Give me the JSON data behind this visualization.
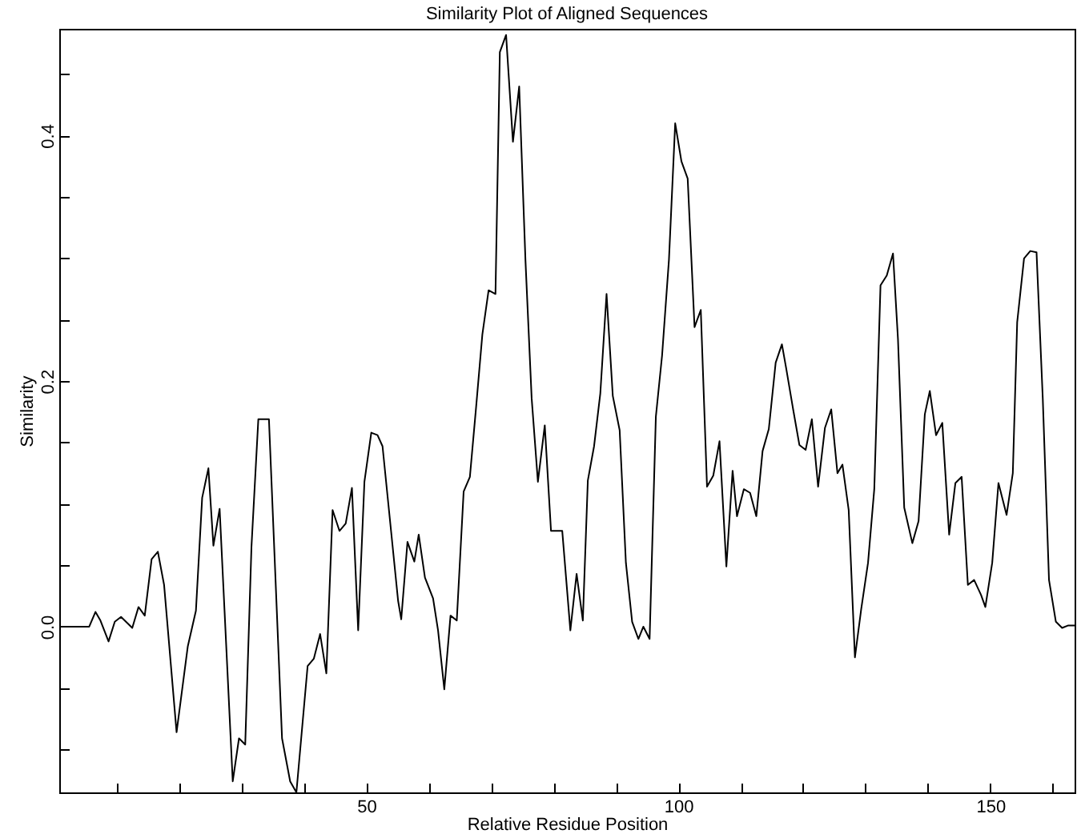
{
  "chart_data": {
    "type": "line",
    "title": "Similarity Plot of Aligned Sequences",
    "xlabel": "Relative Residue Position",
    "ylabel": "Similarity",
    "xlim": [
      0.8,
      163.5
    ],
    "ylim": [
      -0.135,
      0.487
    ],
    "xticks": [
      {
        "value": 10,
        "label": null
      },
      {
        "value": 20,
        "label": null
      },
      {
        "value": 30,
        "label": null
      },
      {
        "value": 40,
        "label": null
      },
      50,
      {
        "value": 60,
        "label": null
      },
      {
        "value": 70,
        "label": null
      },
      {
        "value": 80,
        "label": null
      },
      {
        "value": 90,
        "label": null
      },
      100,
      {
        "value": 110,
        "label": null
      },
      {
        "value": 120,
        "label": null
      },
      {
        "value": 130,
        "label": null
      },
      {
        "value": 140,
        "label": null
      },
      150,
      {
        "value": 160,
        "label": null
      }
    ],
    "yticks": [
      {
        "value": -0.1,
        "label": null
      },
      {
        "value": -0.05,
        "label": null
      },
      {
        "value": 0,
        "label": "0.0"
      },
      {
        "value": 0.05,
        "label": null
      },
      {
        "value": 0.1,
        "label": null
      },
      {
        "value": 0.15,
        "label": null
      },
      0.2,
      {
        "value": 0.25,
        "label": null
      },
      {
        "value": 0.3,
        "label": null
      },
      {
        "value": 0.35,
        "label": null
      },
      0.4,
      {
        "value": 0.45,
        "label": null
      }
    ],
    "grid": false,
    "marker": "none",
    "line_style": "solid",
    "x": [
      0.8,
      5.6,
      6.6,
      7.4,
      8.7,
      9.7,
      10.7,
      12.5,
      13.5,
      14.5,
      15.6,
      16.6,
      17.6,
      19.6,
      21.4,
      22.7,
      23.7,
      24.7,
      25.5,
      26.5,
      28.6,
      29.6,
      30.6,
      31.6,
      32.7,
      34.4,
      36.5,
      37.8,
      38.8,
      40.6,
      41.6,
      42.6,
      43.6,
      44.6,
      45.7,
      46.7,
      47.7,
      48.7,
      49.7,
      50.8,
      51.8,
      52.6,
      55.1,
      55.6,
      56.6,
      57.7,
      58.4,
      59.4,
      60.7,
      61.5,
      62.5,
      63.5,
      64.5,
      65.6,
      66.6,
      67.6,
      68.6,
      69.6,
      70.7,
      71.4,
      72.4,
      73.5,
      74.5,
      75.5,
      76.5,
      77.5,
      78.6,
      79.6,
      81.4,
      82.7,
      83.7,
      84.7,
      85.5,
      86.5,
      87.5,
      88.5,
      89.5,
      90.6,
      91.6,
      92.6,
      93.6,
      94.4,
      95.4,
      96.4,
      97.4,
      98.5,
      99.5,
      100.5,
      101.5,
      102.6,
      103.6,
      104.6,
      105.6,
      106.6,
      107.7,
      108.7,
      109.4,
      110.5,
      111.5,
      112.5,
      113.5,
      114.5,
      115.6,
      116.6,
      117.3,
      118.4,
      119.4,
      120.4,
      121.4,
      122.4,
      123.5,
      124.5,
      125.5,
      126.3,
      127.3,
      128.3,
      129.3,
      130.4,
      131.4,
      132.4,
      133.4,
      134.4,
      135.2,
      136.2,
      137.5,
      138.5,
      139.5,
      140.3,
      141.3,
      142.3,
      143.4,
      144.4,
      145.4,
      146.4,
      147.4,
      148.5,
      149.2,
      150.3,
      151.3,
      152.6,
      153.6,
      154.3,
      155.4,
      156.4,
      157.4,
      158.4,
      159.4,
      160.5,
      161.5,
      162.5,
      163.5
    ],
    "series": [
      {
        "color": "#000000",
        "values": [
          0.0,
          0.0,
          0.012,
          0.005,
          -0.012,
          0.004,
          0.008,
          -0.001,
          0.016,
          0.009,
          0.055,
          0.061,
          0.034,
          -0.086,
          -0.016,
          0.013,
          0.105,
          0.129,
          0.066,
          0.096,
          -0.126,
          -0.091,
          -0.096,
          0.065,
          0.169,
          0.169,
          -0.091,
          -0.126,
          -0.135,
          -0.032,
          -0.026,
          -0.006,
          -0.038,
          0.095,
          0.078,
          0.084,
          0.113,
          -0.003,
          0.118,
          0.158,
          0.156,
          0.147,
          0.021,
          0.006,
          0.069,
          0.053,
          0.075,
          0.04,
          0.023,
          -0.003,
          -0.051,
          0.009,
          0.005,
          0.11,
          0.122,
          0.179,
          0.238,
          0.274,
          0.271,
          0.468,
          0.482,
          0.395,
          0.44,
          0.299,
          0.186,
          0.118,
          0.164,
          0.078,
          0.078,
          -0.003,
          0.043,
          0.005,
          0.119,
          0.147,
          0.19,
          0.271,
          0.188,
          0.16,
          0.052,
          0.004,
          -0.01,
          0.0,
          -0.01,
          0.171,
          0.221,
          0.299,
          0.41,
          0.379,
          0.365,
          0.244,
          0.258,
          0.114,
          0.123,
          0.151,
          0.049,
          0.127,
          0.09,
          0.112,
          0.109,
          0.09,
          0.143,
          0.161,
          0.215,
          0.23,
          0.21,
          0.177,
          0.148,
          0.144,
          0.169,
          0.114,
          0.162,
          0.177,
          0.125,
          0.132,
          0.095,
          -0.025,
          0.014,
          0.052,
          0.112,
          0.278,
          0.286,
          0.304,
          0.234,
          0.097,
          0.068,
          0.086,
          0.173,
          0.192,
          0.156,
          0.166,
          0.075,
          0.117,
          0.122,
          0.034,
          0.038,
          0.026,
          0.016,
          0.052,
          0.117,
          0.091,
          0.125,
          0.248,
          0.3,
          0.306,
          0.305,
          0.186,
          0.038,
          0.004,
          -0.001,
          0.001,
          0.001
        ]
      }
    ]
  }
}
